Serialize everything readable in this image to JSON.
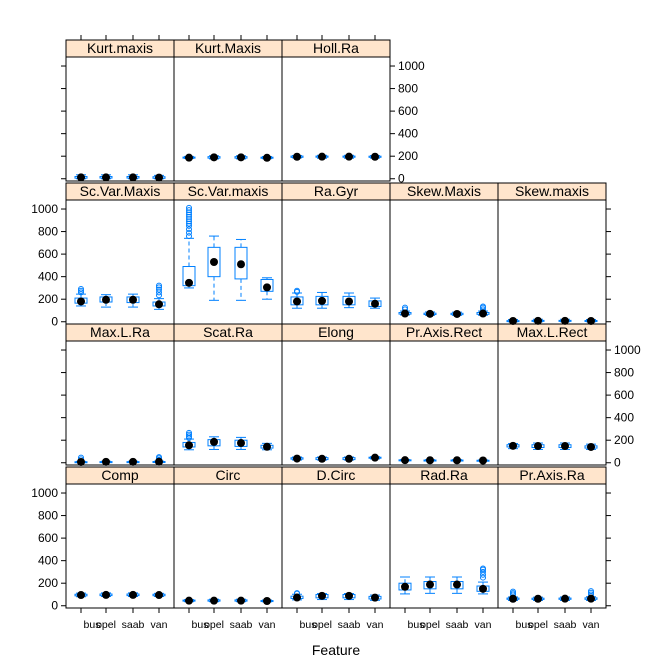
{
  "chart_data": {
    "type": "box",
    "xlabel": "Feature",
    "ylabel": "",
    "ylim": [
      -20,
      1080
    ],
    "yticks": [
      0,
      200,
      400,
      600,
      800,
      1000
    ],
    "categories": [
      "bus",
      "opel",
      "saab",
      "van"
    ],
    "colors": {
      "box": "#0080ff",
      "median": "#000000",
      "strip": "#ffe5cc"
    },
    "panels": [
      {
        "name": "Comp",
        "row": 0,
        "col": 0,
        "stats": [
          {
            "min": 80,
            "q1": 88,
            "median": 95,
            "q3": 102,
            "max": 112,
            "outliers": []
          },
          {
            "min": 82,
            "q1": 90,
            "median": 96,
            "q3": 104,
            "max": 114,
            "outliers": []
          },
          {
            "min": 82,
            "q1": 90,
            "median": 96,
            "q3": 104,
            "max": 114,
            "outliers": []
          },
          {
            "min": 82,
            "q1": 89,
            "median": 95,
            "q3": 102,
            "max": 110,
            "outliers": []
          }
        ]
      },
      {
        "name": "Circ",
        "row": 0,
        "col": 1,
        "stats": [
          {
            "min": 36,
            "q1": 41,
            "median": 45,
            "q3": 50,
            "max": 55,
            "outliers": []
          },
          {
            "min": 36,
            "q1": 41,
            "median": 45,
            "q3": 52,
            "max": 58,
            "outliers": []
          },
          {
            "min": 36,
            "q1": 41,
            "median": 45,
            "q3": 52,
            "max": 58,
            "outliers": []
          },
          {
            "min": 35,
            "q1": 39,
            "median": 42,
            "q3": 46,
            "max": 51,
            "outliers": []
          }
        ]
      },
      {
        "name": "D.Circ",
        "row": 0,
        "col": 2,
        "stats": [
          {
            "min": 52,
            "q1": 64,
            "median": 73,
            "q3": 85,
            "max": 102,
            "outliers": [
              108,
              112
            ]
          },
          {
            "min": 55,
            "q1": 70,
            "median": 88,
            "q3": 100,
            "max": 108,
            "outliers": []
          },
          {
            "min": 55,
            "q1": 70,
            "median": 88,
            "q3": 100,
            "max": 108,
            "outliers": []
          },
          {
            "min": 48,
            "q1": 60,
            "median": 72,
            "q3": 83,
            "max": 95,
            "outliers": []
          }
        ]
      },
      {
        "name": "Rad.Ra",
        "row": 0,
        "col": 3,
        "stats": [
          {
            "min": 105,
            "q1": 140,
            "median": 168,
            "q3": 200,
            "max": 255,
            "outliers": []
          },
          {
            "min": 110,
            "q1": 150,
            "median": 188,
            "q3": 215,
            "max": 255,
            "outliers": []
          },
          {
            "min": 110,
            "q1": 150,
            "median": 188,
            "q3": 215,
            "max": 255,
            "outliers": []
          },
          {
            "min": 105,
            "q1": 128,
            "median": 150,
            "q3": 175,
            "max": 210,
            "outliers": [
              250,
              275,
              300,
              320,
              330
            ]
          }
        ]
      },
      {
        "name": "Pr.Axis.Ra",
        "row": 0,
        "col": 4,
        "stats": [
          {
            "min": 47,
            "q1": 57,
            "median": 62,
            "q3": 68,
            "max": 78,
            "outliers": [
              100,
              112,
              125
            ]
          },
          {
            "min": 47,
            "q1": 56,
            "median": 62,
            "q3": 67,
            "max": 76,
            "outliers": []
          },
          {
            "min": 47,
            "q1": 57,
            "median": 63,
            "q3": 68,
            "max": 78,
            "outliers": []
          },
          {
            "min": 47,
            "q1": 57,
            "median": 63,
            "q3": 70,
            "max": 80,
            "outliers": [
              100,
              115,
              130
            ]
          }
        ]
      },
      {
        "name": "Max.L.Ra",
        "row": 1,
        "col": 0,
        "stats": [
          {
            "min": 3,
            "q1": 6,
            "median": 7,
            "q3": 9,
            "max": 12,
            "outliers": [
              30,
              45
            ]
          },
          {
            "min": 3,
            "q1": 6,
            "median": 8,
            "q3": 10,
            "max": 13,
            "outliers": []
          },
          {
            "min": 3,
            "q1": 6,
            "median": 8,
            "q3": 10,
            "max": 13,
            "outliers": []
          },
          {
            "min": 3,
            "q1": 6,
            "median": 9,
            "q3": 11,
            "max": 14,
            "outliers": [
              25,
              40,
              50
            ]
          }
        ]
      },
      {
        "name": "Scat.Ra",
        "row": 1,
        "col": 1,
        "stats": [
          {
            "min": 115,
            "q1": 140,
            "median": 155,
            "q3": 180,
            "max": 210,
            "outliers": [
              220,
              235,
              250,
              265
            ]
          },
          {
            "min": 118,
            "q1": 150,
            "median": 185,
            "q3": 205,
            "max": 230,
            "outliers": []
          },
          {
            "min": 118,
            "q1": 145,
            "median": 175,
            "q3": 200,
            "max": 225,
            "outliers": []
          },
          {
            "min": 115,
            "q1": 130,
            "median": 142,
            "q3": 155,
            "max": 172,
            "outliers": []
          }
        ]
      },
      {
        "name": "Elong",
        "row": 1,
        "col": 2,
        "stats": [
          {
            "min": 24,
            "q1": 32,
            "median": 37,
            "q3": 44,
            "max": 51,
            "outliers": []
          },
          {
            "min": 24,
            "q1": 28,
            "median": 35,
            "q3": 45,
            "max": 51,
            "outliers": []
          },
          {
            "min": 24,
            "q1": 28,
            "median": 35,
            "q3": 45,
            "max": 51,
            "outliers": []
          },
          {
            "min": 34,
            "q1": 40,
            "median": 45,
            "q3": 49,
            "max": 54,
            "outliers": []
          }
        ]
      },
      {
        "name": "Pr.Axis.Rect",
        "row": 1,
        "col": 3,
        "stats": [
          {
            "min": 17,
            "q1": 21,
            "median": 23,
            "q3": 26,
            "max": 29,
            "outliers": []
          },
          {
            "min": 17,
            "q1": 19,
            "median": 22,
            "q3": 24,
            "max": 28,
            "outliers": []
          },
          {
            "min": 17,
            "q1": 19,
            "median": 22,
            "q3": 24,
            "max": 28,
            "outliers": []
          },
          {
            "min": 17,
            "q1": 19,
            "median": 20,
            "q3": 22,
            "max": 25,
            "outliers": []
          }
        ]
      },
      {
        "name": "Max.L.Rect",
        "row": 1,
        "col": 4,
        "stats": [
          {
            "min": 125,
            "q1": 140,
            "median": 150,
            "q3": 160,
            "max": 170,
            "outliers": []
          },
          {
            "min": 118,
            "q1": 135,
            "median": 148,
            "q3": 160,
            "max": 175,
            "outliers": []
          },
          {
            "min": 118,
            "q1": 135,
            "median": 148,
            "q3": 160,
            "max": 175,
            "outliers": []
          },
          {
            "min": 118,
            "q1": 130,
            "median": 140,
            "q3": 150,
            "max": 165,
            "outliers": []
          }
        ]
      },
      {
        "name": "Sc.Var.Maxis",
        "row": 2,
        "col": 0,
        "stats": [
          {
            "min": 140,
            "q1": 165,
            "median": 180,
            "q3": 210,
            "max": 245,
            "outliers": [
              260,
              275,
              290
            ]
          },
          {
            "min": 130,
            "q1": 175,
            "median": 195,
            "q3": 220,
            "max": 240,
            "outliers": []
          },
          {
            "min": 130,
            "q1": 170,
            "median": 195,
            "q3": 220,
            "max": 245,
            "outliers": []
          },
          {
            "min": 110,
            "q1": 140,
            "median": 155,
            "q3": 175,
            "max": 205,
            "outliers": [
              235,
              260,
              285,
              305,
              320
            ]
          }
        ]
      },
      {
        "name": "Sc.Var.maxis",
        "row": 2,
        "col": 1,
        "stats": [
          {
            "min": 300,
            "q1": 320,
            "median": 345,
            "q3": 490,
            "max": 740,
            "outliers": [
              760,
              790,
              820,
              850,
              870,
              890,
              910,
              930,
              950,
              970,
              990,
              1010
            ]
          },
          {
            "min": 190,
            "q1": 400,
            "median": 530,
            "q3": 660,
            "max": 760,
            "outliers": []
          },
          {
            "min": 190,
            "q1": 380,
            "median": 510,
            "q3": 660,
            "max": 730,
            "outliers": []
          },
          {
            "min": 200,
            "q1": 270,
            "median": 305,
            "q3": 375,
            "max": 390,
            "outliers": []
          }
        ]
      },
      {
        "name": "Ra.Gyr",
        "row": 2,
        "col": 2,
        "stats": [
          {
            "min": 120,
            "q1": 150,
            "median": 180,
            "q3": 220,
            "max": 255,
            "outliers": [
              265,
              275
            ]
          },
          {
            "min": 120,
            "q1": 150,
            "median": 185,
            "q3": 225,
            "max": 260,
            "outliers": []
          },
          {
            "min": 125,
            "q1": 150,
            "median": 180,
            "q3": 225,
            "max": 255,
            "outliers": []
          },
          {
            "min": 120,
            "q1": 135,
            "median": 160,
            "q3": 185,
            "max": 210,
            "outliers": []
          }
        ]
      },
      {
        "name": "Skew.Maxis",
        "row": 2,
        "col": 3,
        "stats": [
          {
            "min": 60,
            "q1": 68,
            "median": 73,
            "q3": 82,
            "max": 95,
            "outliers": [
              110,
              125
            ]
          },
          {
            "min": 57,
            "q1": 64,
            "median": 70,
            "q3": 76,
            "max": 87,
            "outliers": []
          },
          {
            "min": 57,
            "q1": 63,
            "median": 69,
            "q3": 75,
            "max": 85,
            "outliers": []
          },
          {
            "min": 58,
            "q1": 66,
            "median": 73,
            "q3": 82,
            "max": 95,
            "outliers": [
              110,
              125,
              135
            ]
          }
        ]
      },
      {
        "name": "Skew.maxis",
        "row": 2,
        "col": 4,
        "stats": [
          {
            "min": 0,
            "q1": 4,
            "median": 7,
            "q3": 10,
            "max": 20,
            "outliers": []
          },
          {
            "min": 0,
            "q1": 4,
            "median": 8,
            "q3": 12,
            "max": 22,
            "outliers": []
          },
          {
            "min": 0,
            "q1": 4,
            "median": 8,
            "q3": 12,
            "max": 22,
            "outliers": []
          },
          {
            "min": 0,
            "q1": 4,
            "median": 7,
            "q3": 11,
            "max": 20,
            "outliers": []
          }
        ]
      },
      {
        "name": "Kurt.maxis",
        "row": 3,
        "col": 0,
        "stats": [
          {
            "min": 0,
            "q1": 5,
            "median": 12,
            "q3": 20,
            "max": 35,
            "outliers": []
          },
          {
            "min": 0,
            "q1": 6,
            "median": 12,
            "q3": 20,
            "max": 35,
            "outliers": []
          },
          {
            "min": 0,
            "q1": 6,
            "median": 12,
            "q3": 20,
            "max": 35,
            "outliers": []
          },
          {
            "min": 0,
            "q1": 4,
            "median": 10,
            "q3": 18,
            "max": 30,
            "outliers": []
          }
        ]
      },
      {
        "name": "Kurt.Maxis",
        "row": 3,
        "col": 1,
        "stats": [
          {
            "min": 180,
            "q1": 183,
            "median": 187,
            "q3": 192,
            "max": 198,
            "outliers": []
          },
          {
            "min": 176,
            "q1": 183,
            "median": 190,
            "q3": 196,
            "max": 204,
            "outliers": []
          },
          {
            "min": 176,
            "q1": 183,
            "median": 190,
            "q3": 196,
            "max": 204,
            "outliers": []
          },
          {
            "min": 178,
            "q1": 182,
            "median": 186,
            "q3": 191,
            "max": 197,
            "outliers": []
          }
        ]
      },
      {
        "name": "Holl.Ra",
        "row": 3,
        "col": 2,
        "stats": [
          {
            "min": 185,
            "q1": 190,
            "median": 195,
            "q3": 201,
            "max": 206,
            "outliers": []
          },
          {
            "min": 182,
            "q1": 191,
            "median": 196,
            "q3": 201,
            "max": 208,
            "outliers": []
          },
          {
            "min": 182,
            "q1": 191,
            "median": 196,
            "q3": 201,
            "max": 208,
            "outliers": []
          },
          {
            "min": 183,
            "q1": 190,
            "median": 195,
            "q3": 200,
            "max": 206,
            "outliers": []
          }
        ]
      }
    ]
  }
}
